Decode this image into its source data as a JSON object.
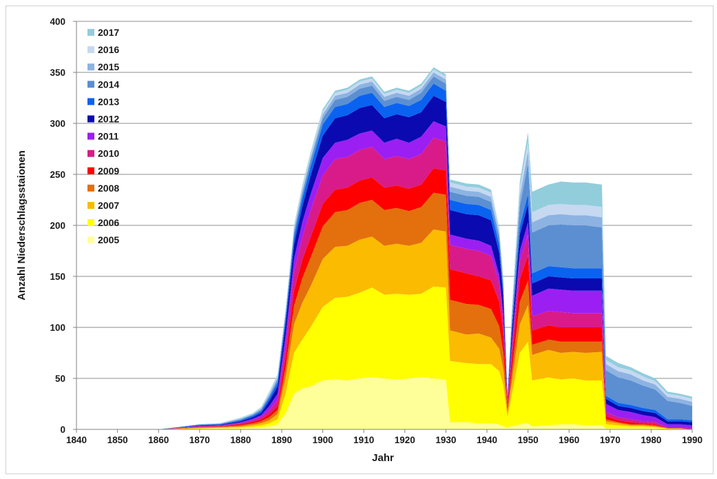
{
  "chart_data": {
    "type": "area",
    "stacked": true,
    "xlabel": "Jahr",
    "ylabel": "Anzahl Niederschlagsstaionen",
    "xlim": [
      1840,
      1990
    ],
    "ylim": [
      0,
      400
    ],
    "x_ticks": [
      1840,
      1850,
      1860,
      1870,
      1880,
      1890,
      1900,
      1910,
      1920,
      1930,
      1940,
      1950,
      1960,
      1970,
      1980,
      1990
    ],
    "y_ticks": [
      0,
      50,
      100,
      150,
      200,
      250,
      300,
      350,
      400
    ],
    "grid": "horizontal",
    "legend_position": "top-left",
    "x": [
      1840,
      1850,
      1860,
      1870,
      1875,
      1880,
      1883,
      1885,
      1887,
      1889,
      1891,
      1893,
      1895,
      1897,
      1900,
      1903,
      1906,
      1909,
      1912,
      1915,
      1918,
      1921,
      1924,
      1927,
      1930,
      1931,
      1935,
      1938,
      1941,
      1943,
      1944,
      1945,
      1946,
      1948,
      1950,
      1951,
      1955,
      1958,
      1961,
      1964,
      1968,
      1969,
      1972,
      1975,
      1978,
      1981,
      1984,
      1987,
      1990
    ],
    "series": [
      {
        "name": "2005",
        "color": "#ffff99",
        "values": [
          0,
          0,
          0,
          0.5,
          1,
          1,
          1.5,
          2,
          3,
          5,
          16,
          35,
          40,
          42,
          48,
          49,
          48,
          50,
          51,
          50,
          49,
          50,
          51,
          50,
          49,
          7,
          7,
          6,
          6,
          5,
          3,
          2,
          3,
          5,
          6,
          3,
          4,
          5,
          5,
          4,
          4,
          1,
          1,
          1,
          1,
          1,
          0,
          0,
          0
        ]
      },
      {
        "name": "2006",
        "color": "#ffff00",
        "values": [
          0,
          0,
          0,
          0.5,
          0.5,
          1,
          1.5,
          2,
          3,
          5,
          20,
          40,
          48,
          58,
          72,
          80,
          82,
          84,
          88,
          82,
          84,
          82,
          82,
          90,
          90,
          60,
          58,
          58,
          58,
          52,
          40,
          10,
          30,
          70,
          80,
          45,
          47,
          44,
          45,
          44,
          44,
          4,
          3,
          2,
          2,
          1,
          1,
          1,
          0
        ]
      },
      {
        "name": "2007",
        "color": "#fbbb00",
        "values": [
          0,
          0,
          0,
          0.5,
          0.5,
          1,
          1.5,
          2,
          3,
          5,
          16,
          28,
          36,
          40,
          47,
          50,
          50,
          52,
          50,
          48,
          49,
          48,
          50,
          56,
          55,
          30,
          28,
          30,
          26,
          22,
          16,
          4,
          12,
          28,
          36,
          25,
          27,
          26,
          26,
          27,
          28,
          3,
          2,
          1,
          1,
          1,
          0,
          0,
          0
        ]
      },
      {
        "name": "2008",
        "color": "#e3700c",
        "values": [
          0,
          0,
          0,
          0.5,
          0.5,
          1,
          1.5,
          2,
          3,
          4,
          10,
          18,
          24,
          28,
          32,
          34,
          35,
          36,
          36,
          35,
          35,
          34,
          35,
          36,
          36,
          30,
          30,
          28,
          28,
          22,
          16,
          3,
          10,
          22,
          24,
          10,
          10,
          11,
          10,
          11,
          10,
          2,
          1,
          1,
          1,
          1,
          0,
          0,
          0
        ]
      },
      {
        "name": "2009",
        "color": "#ff0000",
        "values": [
          0,
          0,
          0,
          0.5,
          0.5,
          1,
          1.5,
          2,
          3,
          4,
          10,
          15,
          18,
          20,
          22,
          22,
          22,
          22,
          22,
          22,
          22,
          22,
          22,
          24,
          24,
          30,
          30,
          28,
          28,
          24,
          18,
          4,
          12,
          22,
          25,
          14,
          14,
          14,
          14,
          14,
          14,
          3,
          2,
          2,
          1,
          1,
          0,
          0,
          0
        ]
      },
      {
        "name": "2010",
        "color": "#d81b89",
        "values": [
          0,
          0,
          0,
          0.5,
          0.5,
          1,
          1.5,
          2,
          4,
          6,
          12,
          18,
          22,
          26,
          28,
          30,
          30,
          30,
          30,
          28,
          29,
          29,
          30,
          30,
          28,
          24,
          24,
          25,
          24,
          18,
          14,
          3,
          10,
          18,
          20,
          14,
          14,
          15,
          14,
          14,
          14,
          4,
          3,
          3,
          2,
          2,
          1,
          1,
          1
        ]
      },
      {
        "name": "2011",
        "color": "#9b1ff2",
        "values": [
          0,
          0,
          0,
          0.5,
          0.5,
          1,
          1.5,
          2,
          4,
          6,
          10,
          13,
          15,
          16,
          17,
          16,
          17,
          16,
          16,
          16,
          17,
          16,
          17,
          16,
          15,
          10,
          10,
          10,
          10,
          8,
          6,
          2,
          6,
          10,
          12,
          20,
          22,
          22,
          22,
          22,
          22,
          8,
          7,
          7,
          6,
          5,
          3,
          3,
          3
        ]
      },
      {
        "name": "2012",
        "color": "#0a0ab0",
        "values": [
          0,
          0,
          0,
          0.5,
          0.5,
          1,
          1.5,
          2,
          5,
          7,
          11,
          14,
          15,
          18,
          22,
          24,
          24,
          25,
          25,
          24,
          24,
          25,
          24,
          25,
          24,
          24,
          24,
          25,
          25,
          22,
          16,
          3,
          10,
          16,
          18,
          12,
          12,
          12,
          12,
          12,
          12,
          5,
          4,
          4,
          4,
          4,
          3,
          3,
          3
        ]
      },
      {
        "name": "2013",
        "color": "#0a62f0",
        "values": [
          0,
          0,
          0,
          0.5,
          0.5,
          1,
          1.5,
          2,
          3,
          4,
          6,
          7,
          8,
          9,
          11,
          11,
          11,
          12,
          12,
          11,
          11,
          11,
          12,
          12,
          11,
          10,
          10,
          10,
          10,
          8,
          6,
          1,
          4,
          8,
          10,
          10,
          10,
          10,
          10,
          10,
          10,
          3,
          3,
          3,
          3,
          3,
          2,
          2,
          2
        ]
      },
      {
        "name": "2014",
        "color": "#5b8fd2",
        "values": [
          0,
          0,
          0,
          0.2,
          0.5,
          1,
          1,
          1.5,
          2,
          3,
          4,
          5,
          5,
          6,
          6,
          7,
          7,
          7,
          7,
          6,
          6,
          6,
          7,
          7,
          7,
          8,
          8,
          8,
          8,
          7,
          6,
          1,
          8,
          20,
          30,
          40,
          40,
          42,
          42,
          42,
          40,
          25,
          25,
          24,
          22,
          20,
          18,
          16,
          14
        ]
      },
      {
        "name": "2015",
        "color": "#8db3e2",
        "values": [
          0,
          0,
          0,
          0.2,
          0.3,
          0.5,
          0.5,
          1,
          1.5,
          2,
          2,
          3,
          3,
          3,
          4,
          4,
          4,
          4,
          4,
          4,
          4,
          4,
          4,
          4,
          4,
          5,
          5,
          5,
          5,
          4,
          3,
          1,
          4,
          10,
          12,
          10,
          10,
          10,
          10,
          10,
          10,
          6,
          6,
          6,
          5,
          5,
          4,
          4,
          4
        ]
      },
      {
        "name": "2016",
        "color": "#c6d9f1",
        "values": [
          0,
          0,
          0,
          0.2,
          0.3,
          0.5,
          0.5,
          1,
          1.5,
          2,
          2,
          2,
          3,
          3,
          3,
          3,
          3,
          3,
          3,
          3,
          3,
          3,
          3,
          3,
          3,
          4,
          4,
          4,
          4,
          3,
          2,
          1,
          3,
          8,
          10,
          10,
          10,
          10,
          10,
          10,
          10,
          4,
          4,
          4,
          4,
          3,
          3,
          3,
          3
        ]
      },
      {
        "name": "2017",
        "color": "#92cddc",
        "values": [
          0,
          0,
          0,
          0.1,
          0.2,
          0.5,
          0.5,
          0.5,
          1,
          1,
          1,
          2,
          2,
          2,
          2,
          2,
          2,
          2,
          2,
          2,
          2,
          2,
          2,
          2,
          2,
          3,
          3,
          3,
          3,
          2,
          1,
          0,
          2,
          6,
          8,
          20,
          20,
          22,
          22,
          22,
          22,
          4,
          4,
          3,
          3,
          3,
          2,
          2,
          2
        ]
      }
    ]
  }
}
